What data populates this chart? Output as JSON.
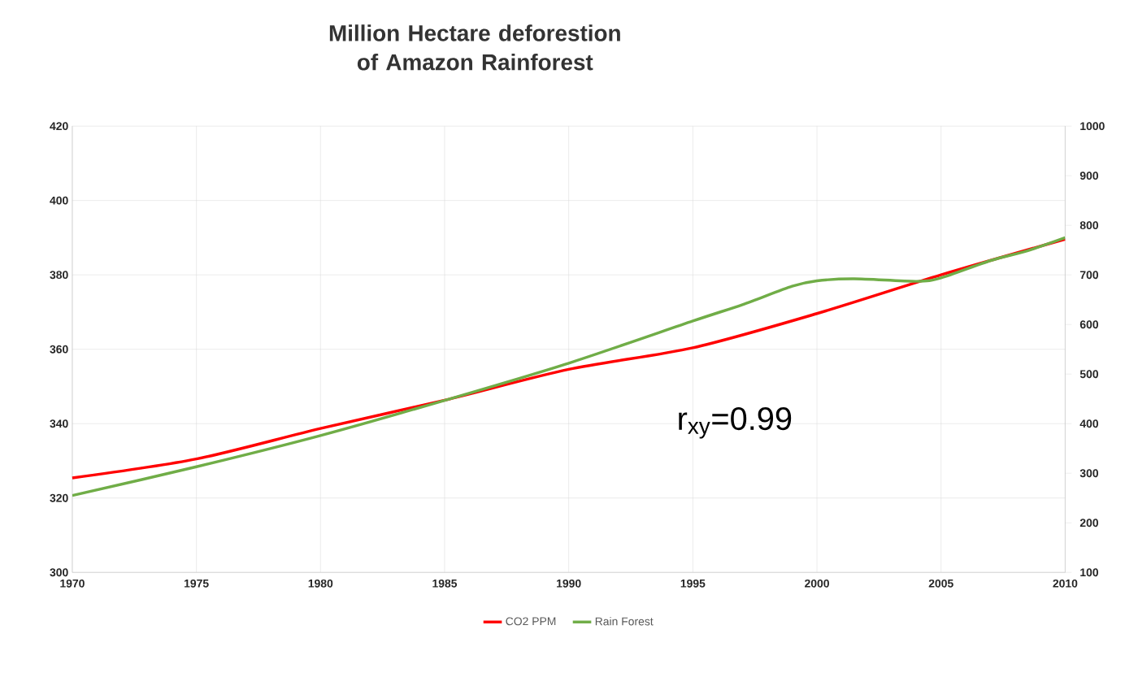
{
  "chart_data": {
    "type": "line",
    "title": "Million Hectare deforestion\nof Amazon Rainforest",
    "xlim": [
      1970,
      2010
    ],
    "xticks": [
      1970,
      1975,
      1980,
      1985,
      1990,
      1995,
      2000,
      2005,
      2010
    ],
    "ylim": [
      300,
      420
    ],
    "yticks": [
      300,
      320,
      340,
      360,
      380,
      400,
      420
    ],
    "y2lim": [
      100,
      1000
    ],
    "y2ticks": [
      100,
      200,
      300,
      400,
      500,
      600,
      700,
      800,
      900,
      1000
    ],
    "grid": true,
    "legend": "bottom",
    "marker": "none",
    "line_style": "solid",
    "annotations": [
      "r$_{xy}$=0.99"
    ],
    "series": [
      {
        "name": "CO2 PPM",
        "color": "#ff0000",
        "x": [
          1970,
          1975,
          1980,
          1985,
          1990,
          1995,
          2000,
          2005,
          2010
        ],
        "values": [
          325.4,
          330.5,
          338.7,
          346.3,
          354.6,
          360.4,
          369.6,
          380,
          389.6
        ]
      },
      {
        "name": "Rain Forest",
        "color": "#70ad47",
        "axis": "y2",
        "x": [
          1970,
          1975,
          1980,
          1985,
          1990,
          1995,
          1997,
          1999,
          2000,
          2001.5,
          2004,
          2005,
          2007,
          2008.5,
          2010
        ],
        "values": [
          255,
          313,
          376,
          447,
          522,
          607,
          640,
          677,
          688,
          692,
          687,
          694,
          729,
          749,
          775
        ]
      }
    ]
  }
}
